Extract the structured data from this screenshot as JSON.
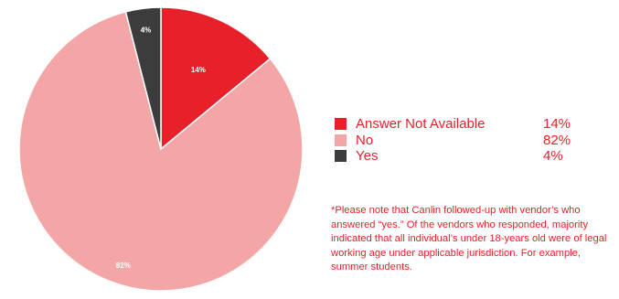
{
  "chart_data": {
    "type": "pie",
    "categories": [
      "Answer Not Available",
      "No",
      "Yes"
    ],
    "values": [
      14,
      82,
      4
    ],
    "value_labels": [
      "14%",
      "82%",
      "4%"
    ],
    "colors": [
      "#e8202a",
      "#f4a6a6",
      "#3c3c3c"
    ],
    "start_angle": "12 o'clock",
    "direction": "clockwise",
    "legend_placement": "right"
  },
  "footnote": "*Please note that Canlin followed-up with vendor’s who answered “yes.” Of the vendors who responded, majority indicated that all individual’s under 18-years old were of legal working age under applicable jurisdiction. For example, summer students."
}
